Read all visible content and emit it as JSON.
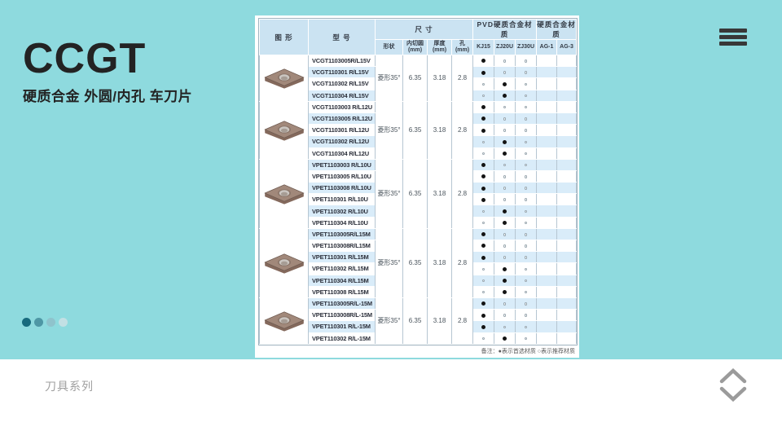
{
  "page": {
    "title": "CCGT",
    "subtitle": "硬质合金 外圆/内孔 车刀片",
    "footer_label": "刀具系列",
    "background_color": "#8edade"
  },
  "pagination": {
    "dots": [
      {
        "name": "page-1",
        "color": "#186a7d",
        "active": true
      },
      {
        "name": "page-2",
        "color": "#4e97a5",
        "active": false
      },
      {
        "name": "page-3",
        "color": "#8fc3cc",
        "active": false
      },
      {
        "name": "page-4",
        "color": "#c2e0e4",
        "active": false
      }
    ]
  },
  "table": {
    "note": "备注：●表示首选材质  ○表示推荐材质",
    "legend": {
      "filled": "表示首选材质",
      "hollow": "表示推荐材质"
    },
    "headers": {
      "image": "图  形",
      "model": "型  号",
      "size_group": "尺  寸",
      "pvd_group": "PVD硬质合金材质",
      "carbide_group": "硬质合金材质",
      "sub": [
        "形状",
        "内切圆\n(mm)",
        "厚度\n(mm)",
        "孔\n(mm)",
        "KJ15",
        "ZJ20U",
        "ZJ30U",
        "AG-1",
        "AG-3"
      ]
    },
    "groups": [
      {
        "shape": "菱形35°",
        "ic": "6.35",
        "thickness": "3.18",
        "hole": "2.8",
        "rows": [
          {
            "model": "VCGT1103005R/L15V",
            "materials": [
              "preferred",
              "recommended",
              "recommended",
              "",
              ""
            ]
          },
          {
            "model": "VCGT110301 R/L15V",
            "materials": [
              "preferred",
              "recommended",
              "recommended",
              "",
              ""
            ]
          },
          {
            "model": "VCGT110302 R/L15V",
            "materials": [
              "recommended",
              "preferred",
              "recommended",
              "",
              ""
            ]
          },
          {
            "model": "VCGT110304 R/L15V",
            "materials": [
              "recommended",
              "preferred",
              "recommended",
              "",
              ""
            ]
          }
        ]
      },
      {
        "shape": "菱形35°",
        "ic": "6.35",
        "thickness": "3.18",
        "hole": "2.8",
        "rows": [
          {
            "model": "VCGT1103003 R/L12U",
            "materials": [
              "preferred",
              "recommended",
              "recommended",
              "",
              ""
            ]
          },
          {
            "model": "VCGT1103005 R/L12U",
            "materials": [
              "preferred",
              "recommended",
              "recommended",
              "",
              ""
            ]
          },
          {
            "model": "VCGT110301 R/L12U",
            "materials": [
              "preferred",
              "recommended",
              "recommended",
              "",
              ""
            ]
          },
          {
            "model": "VCGT110302 R/L12U",
            "materials": [
              "recommended",
              "preferred",
              "recommended",
              "",
              ""
            ]
          },
          {
            "model": "VCGT110304 R/L12U",
            "materials": [
              "recommended",
              "preferred",
              "recommended",
              "",
              ""
            ]
          }
        ]
      },
      {
        "shape": "菱形35°",
        "ic": "6.35",
        "thickness": "3.18",
        "hole": "2.8",
        "rows": [
          {
            "model": "VPET1103003 R/L10U",
            "materials": [
              "preferred",
              "recommended",
              "recommended",
              "",
              ""
            ]
          },
          {
            "model": "VPET1103005 R/L10U",
            "materials": [
              "preferred",
              "recommended",
              "recommended",
              "",
              ""
            ]
          },
          {
            "model": "VPET1103008 R/L10U",
            "materials": [
              "preferred",
              "recommended",
              "recommended",
              "",
              ""
            ]
          },
          {
            "model": "VPET110301 R/L10U",
            "materials": [
              "preferred",
              "recommended",
              "recommended",
              "",
              ""
            ]
          },
          {
            "model": "VPET110302 R/L10U",
            "materials": [
              "recommended",
              "preferred",
              "recommended",
              "",
              ""
            ]
          },
          {
            "model": "VPET110304 R/L10U",
            "materials": [
              "recommended",
              "preferred",
              "recommended",
              "",
              ""
            ]
          }
        ]
      },
      {
        "shape": "菱形35°",
        "ic": "6.35",
        "thickness": "3.18",
        "hole": "2.8",
        "rows": [
          {
            "model": "VPET1103005R/L15M",
            "materials": [
              "preferred",
              "recommended",
              "recommended",
              "",
              ""
            ]
          },
          {
            "model": "VPET1103008R/L15M",
            "materials": [
              "preferred",
              "recommended",
              "recommended",
              "",
              ""
            ]
          },
          {
            "model": "VPET110301 R/L15M",
            "materials": [
              "preferred",
              "recommended",
              "recommended",
              "",
              ""
            ]
          },
          {
            "model": "VPET110302 R/L15M",
            "materials": [
              "recommended",
              "preferred",
              "recommended",
              "",
              ""
            ]
          },
          {
            "model": "VPET110304 R/L15M",
            "materials": [
              "recommended",
              "preferred",
              "recommended",
              "",
              ""
            ]
          },
          {
            "model": "VPET110308 R/L15M",
            "materials": [
              "recommended",
              "preferred",
              "recommended",
              "",
              ""
            ]
          }
        ]
      },
      {
        "shape": "菱形35°",
        "ic": "6.35",
        "thickness": "3.18",
        "hole": "2.8",
        "rows": [
          {
            "model": "VPET1103005R/L-15M",
            "materials": [
              "preferred",
              "recommended",
              "recommended",
              "",
              ""
            ]
          },
          {
            "model": "VPET1103008R/L-15M",
            "materials": [
              "preferred",
              "recommended",
              "recommended",
              "",
              ""
            ]
          },
          {
            "model": "VPET110301 R/L-15M",
            "materials": [
              "preferred",
              "recommended",
              "recommended",
              "",
              ""
            ]
          },
          {
            "model": "VPET110302 R/L-15M",
            "materials": [
              "recommended",
              "preferred",
              "recommended",
              "",
              ""
            ]
          }
        ]
      }
    ]
  }
}
